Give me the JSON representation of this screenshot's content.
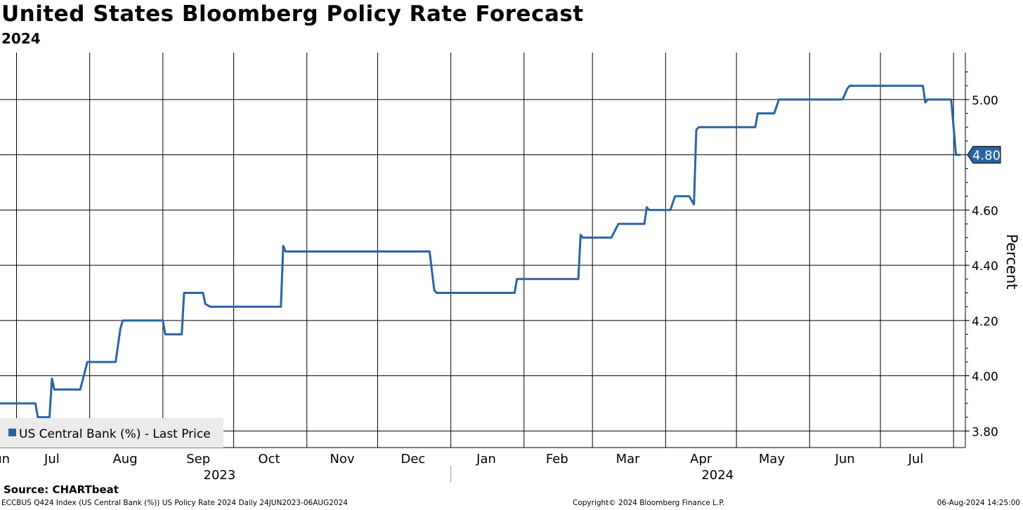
{
  "chart_data": {
    "type": "line",
    "title": "United States Bloomberg Policy Rate Forecast",
    "subtitle": "2024",
    "xlabel": "",
    "ylabel": "Percent",
    "ylim": [
      3.74,
      5.17
    ],
    "y_ticks": [
      "3.80",
      "4.00",
      "4.20",
      "4.40",
      "4.60",
      "4.80",
      "5.00"
    ],
    "x_range": [
      "2023-06-24",
      "2024-08-06"
    ],
    "x_months": [
      {
        "label": "Jun",
        "date": "2023-06-24"
      },
      {
        "label": "Jul",
        "date": "2023-07-16"
      },
      {
        "label": "Aug",
        "date": "2023-08-16"
      },
      {
        "label": "Sep",
        "date": "2023-09-16"
      },
      {
        "label": "Oct",
        "date": "2023-10-16"
      },
      {
        "label": "Nov",
        "date": "2023-11-16"
      },
      {
        "label": "Dec",
        "date": "2023-12-16"
      },
      {
        "label": "Jan",
        "date": "2024-01-16"
      },
      {
        "label": "Feb",
        "date": "2024-02-15"
      },
      {
        "label": "Mar",
        "date": "2024-03-16"
      },
      {
        "label": "Apr",
        "date": "2024-04-16"
      },
      {
        "label": "May",
        "date": "2024-05-16"
      },
      {
        "label": "Jun",
        "date": "2024-06-16"
      },
      {
        "label": "Jul",
        "date": "2024-07-16"
      }
    ],
    "x_gridlines": [
      "2023-07-01",
      "2023-08-01",
      "2023-09-01",
      "2023-10-01",
      "2023-11-01",
      "2023-12-01",
      "2024-01-01",
      "2024-02-01",
      "2024-03-01",
      "2024-04-01",
      "2024-05-01",
      "2024-06-01",
      "2024-07-01",
      "2024-08-01"
    ],
    "x_years": [
      {
        "label": "2023",
        "date": "2023-09-25"
      },
      {
        "label": "2024",
        "date": "2024-04-23"
      }
    ],
    "year_divider": "2024-01-01",
    "grid": true,
    "series": [
      {
        "name": "US Central Bank (%) - Last Price",
        "color": "#2b63a0",
        "last_value": "4.80",
        "points": [
          [
            "2023-06-24",
            3.9
          ],
          [
            "2023-07-09",
            3.9
          ],
          [
            "2023-07-10",
            3.85
          ],
          [
            "2023-07-15",
            3.85
          ],
          [
            "2023-07-16",
            3.99
          ],
          [
            "2023-07-17",
            3.95
          ],
          [
            "2023-07-28",
            3.95
          ],
          [
            "2023-07-31",
            4.05
          ],
          [
            "2023-08-12",
            4.05
          ],
          [
            "2023-08-14",
            4.17
          ],
          [
            "2023-08-15",
            4.2
          ],
          [
            "2023-09-01",
            4.2
          ],
          [
            "2023-09-02",
            4.15
          ],
          [
            "2023-09-09",
            4.15
          ],
          [
            "2023-09-10",
            4.3
          ],
          [
            "2023-09-18",
            4.3
          ],
          [
            "2023-09-19",
            4.26
          ],
          [
            "2023-09-21",
            4.25
          ],
          [
            "2023-10-21",
            4.25
          ],
          [
            "2023-10-22",
            4.47
          ],
          [
            "2023-10-23",
            4.45
          ],
          [
            "2023-12-23",
            4.45
          ],
          [
            "2023-12-25",
            4.31
          ],
          [
            "2023-12-26",
            4.3
          ],
          [
            "2024-01-28",
            4.3
          ],
          [
            "2024-01-29",
            4.35
          ],
          [
            "2024-02-24",
            4.35
          ],
          [
            "2024-02-25",
            4.51
          ],
          [
            "2024-02-26",
            4.5
          ],
          [
            "2024-03-09",
            4.5
          ],
          [
            "2024-03-12",
            4.55
          ],
          [
            "2024-03-23",
            4.55
          ],
          [
            "2024-03-24",
            4.61
          ],
          [
            "2024-03-25",
            4.6
          ],
          [
            "2024-04-03",
            4.6
          ],
          [
            "2024-04-05",
            4.65
          ],
          [
            "2024-04-11",
            4.65
          ],
          [
            "2024-04-13",
            4.62
          ],
          [
            "2024-04-14",
            4.89
          ],
          [
            "2024-04-15",
            4.9
          ],
          [
            "2024-05-09",
            4.9
          ],
          [
            "2024-05-10",
            4.95
          ],
          [
            "2024-05-17",
            4.95
          ],
          [
            "2024-05-19",
            5.0
          ],
          [
            "2024-06-15",
            5.0
          ],
          [
            "2024-06-17",
            5.04
          ],
          [
            "2024-06-18",
            5.05
          ],
          [
            "2024-07-19",
            5.05
          ],
          [
            "2024-07-20",
            4.99
          ],
          [
            "2024-07-21",
            5.0
          ],
          [
            "2024-07-31",
            5.0
          ],
          [
            "2024-08-02",
            4.8
          ],
          [
            "2024-08-04",
            4.8
          ]
        ]
      }
    ]
  },
  "source_text": "Source: CHARTbeat",
  "footer": {
    "left": "ECCBUS Q424 Index (US Central Bank (%)) US Policy Rate 2024  Daily 24JUN2023-06AUG2024",
    "center": "Copyright© 2024 Bloomberg Finance L.P.",
    "right": "06-Aug-2024 14:25:00"
  }
}
